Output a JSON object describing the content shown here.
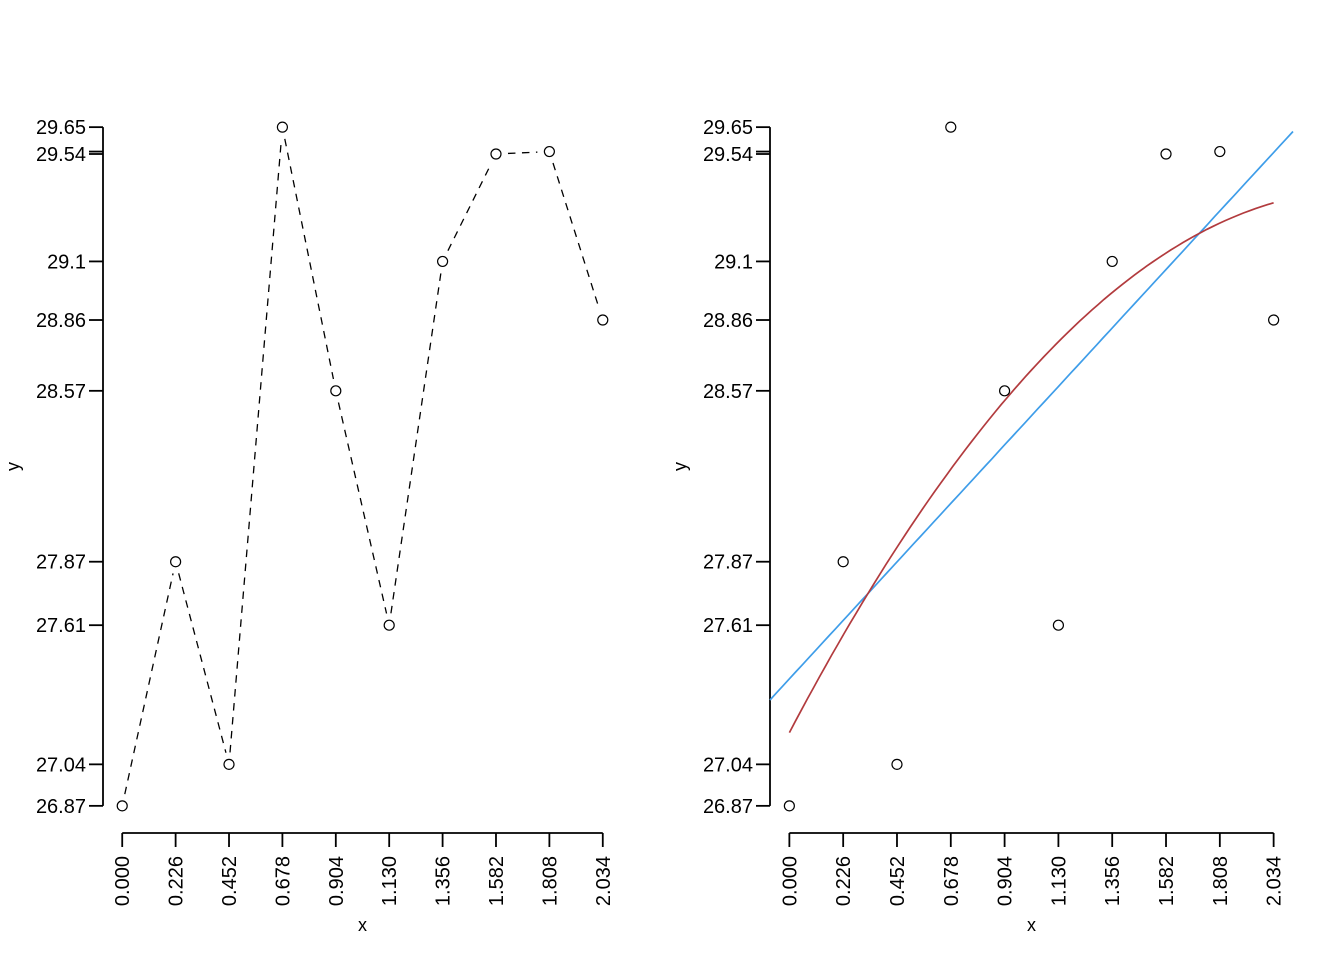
{
  "figure": {
    "background": "#ffffff",
    "description": "Two-panel base-R style plot of y versus x: left panel dashed line with open-circle markers, right panel scatter with linear and quadratic fit lines"
  },
  "chart_data": [
    {
      "panel": "left",
      "type": "line",
      "line_style": "dashed",
      "marker": "open-circle",
      "xlabel": "x",
      "ylabel": "y",
      "x": [
        0,
        0.226,
        0.452,
        0.678,
        0.904,
        1.13,
        1.356,
        1.582,
        1.808,
        2.034
      ],
      "y": [
        26.87,
        27.87,
        27.04,
        29.65,
        28.57,
        27.61,
        29.1,
        29.54,
        29.55,
        28.86
      ],
      "xtick_labels": [
        "0.000",
        "0.226",
        "0.452",
        "0.678",
        "0.904",
        "1.130",
        "1.356",
        "1.582",
        "1.808",
        "2.034"
      ],
      "ytick_values": [
        26.87,
        27.04,
        27.61,
        27.87,
        28.57,
        28.86,
        29.1,
        29.54,
        29.55,
        29.65
      ],
      "ytick_labels": [
        "26.87",
        "27.04",
        "27.61",
        "27.87",
        "28.57",
        "28.86",
        "29.1",
        "29.54",
        "",
        "29.65"
      ],
      "xlim": [
        0,
        2.034
      ],
      "ylim": [
        26.87,
        29.65
      ],
      "grid": false,
      "colors": {
        "line": "#000000",
        "marker": "#000000"
      }
    },
    {
      "panel": "right",
      "type": "scatter",
      "marker": "open-circle",
      "xlabel": "x",
      "ylabel": "y",
      "x": [
        0,
        0.226,
        0.452,
        0.678,
        0.904,
        1.13,
        1.356,
        1.582,
        1.808,
        2.034
      ],
      "y": [
        26.87,
        27.87,
        27.04,
        29.65,
        28.57,
        27.61,
        29.1,
        29.54,
        29.55,
        28.86
      ],
      "xtick_labels": [
        "0.000",
        "0.226",
        "0.452",
        "0.678",
        "0.904",
        "1.130",
        "1.356",
        "1.582",
        "1.808",
        "2.034"
      ],
      "ytick_values": [
        26.87,
        27.04,
        27.61,
        27.87,
        28.57,
        28.86,
        29.1,
        29.54,
        29.55,
        29.65
      ],
      "ytick_labels": [
        "26.87",
        "27.04",
        "27.61",
        "27.87",
        "28.57",
        "28.86",
        "29.1",
        "29.54",
        "",
        "29.65"
      ],
      "xlim": [
        0,
        2.034
      ],
      "ylim": [
        26.87,
        29.65
      ],
      "grid": false,
      "colors": {
        "marker": "#000000"
      },
      "fits": [
        {
          "name": "linear-fit-line",
          "kind": "linear",
          "intercept": 27.39,
          "slope": 1.06,
          "domain": "plot-box",
          "color": "#3E9DE9"
        },
        {
          "name": "quadratic-fit-line",
          "kind": "quadratic",
          "coefficients": [
            27.17,
            1.854,
            -0.387
          ],
          "domain": [
            0,
            2.034
          ],
          "color": "#B23B3E"
        }
      ]
    }
  ]
}
